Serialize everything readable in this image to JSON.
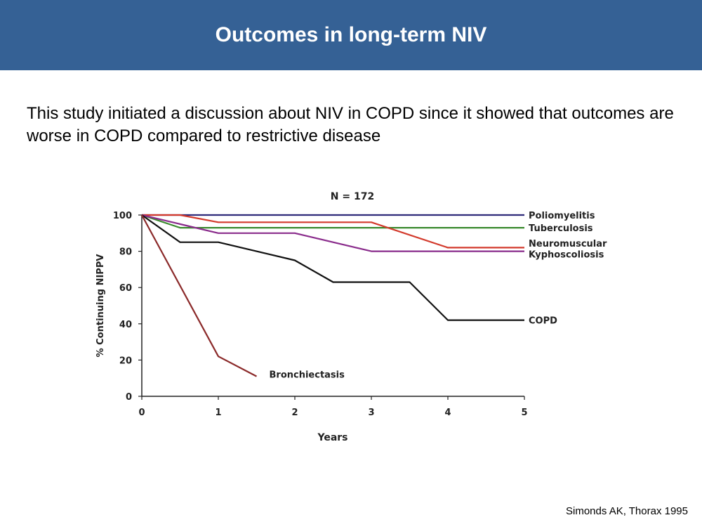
{
  "slide": {
    "title": "Outcomes in long-term NIV",
    "body": "This study initiated a discussion about NIV in COPD since it showed that outcomes are worse in COPD compared to restrictive disease",
    "citation": "Simonds AK, Thorax 1995"
  },
  "chart_data": {
    "type": "line",
    "title": "N = 172",
    "xlabel": "Years",
    "ylabel": "% Continuing NIPPV",
    "xlim": [
      0,
      5
    ],
    "ylim": [
      0,
      100
    ],
    "x_ticks": [
      0,
      1,
      2,
      3,
      4,
      5
    ],
    "y_ticks": [
      0,
      20,
      40,
      60,
      80,
      100
    ],
    "grid": false,
    "series": [
      {
        "name": "Poliomyelitis",
        "color": "#2e2a7a",
        "points": [
          [
            0,
            100
          ],
          [
            5,
            100
          ]
        ]
      },
      {
        "name": "Tuberculosis",
        "color": "#3a8a2e",
        "points": [
          [
            0,
            100
          ],
          [
            0.5,
            93
          ],
          [
            5,
            93
          ]
        ]
      },
      {
        "name": "Neuromuscular",
        "color": "#d33a2c",
        "points": [
          [
            0,
            100
          ],
          [
            0.5,
            100
          ],
          [
            1,
            96
          ],
          [
            3,
            96
          ],
          [
            4,
            82
          ],
          [
            5,
            82
          ]
        ]
      },
      {
        "name": "Kyphoscoliosis",
        "color": "#8a2c8c",
        "points": [
          [
            0,
            100
          ],
          [
            1,
            90
          ],
          [
            2,
            90
          ],
          [
            3,
            80
          ],
          [
            5,
            80
          ]
        ]
      },
      {
        "name": "COPD",
        "color": "#111111",
        "points": [
          [
            0,
            100
          ],
          [
            0.5,
            85
          ],
          [
            1,
            85
          ],
          [
            2,
            75
          ],
          [
            2.5,
            63
          ],
          [
            3.5,
            63
          ],
          [
            4,
            42
          ],
          [
            5,
            42
          ]
        ]
      },
      {
        "name": "Bronchiectasis",
        "color": "#8b2a2a",
        "points": [
          [
            0,
            100
          ],
          [
            1,
            22
          ],
          [
            1.5,
            11
          ]
        ]
      }
    ]
  }
}
